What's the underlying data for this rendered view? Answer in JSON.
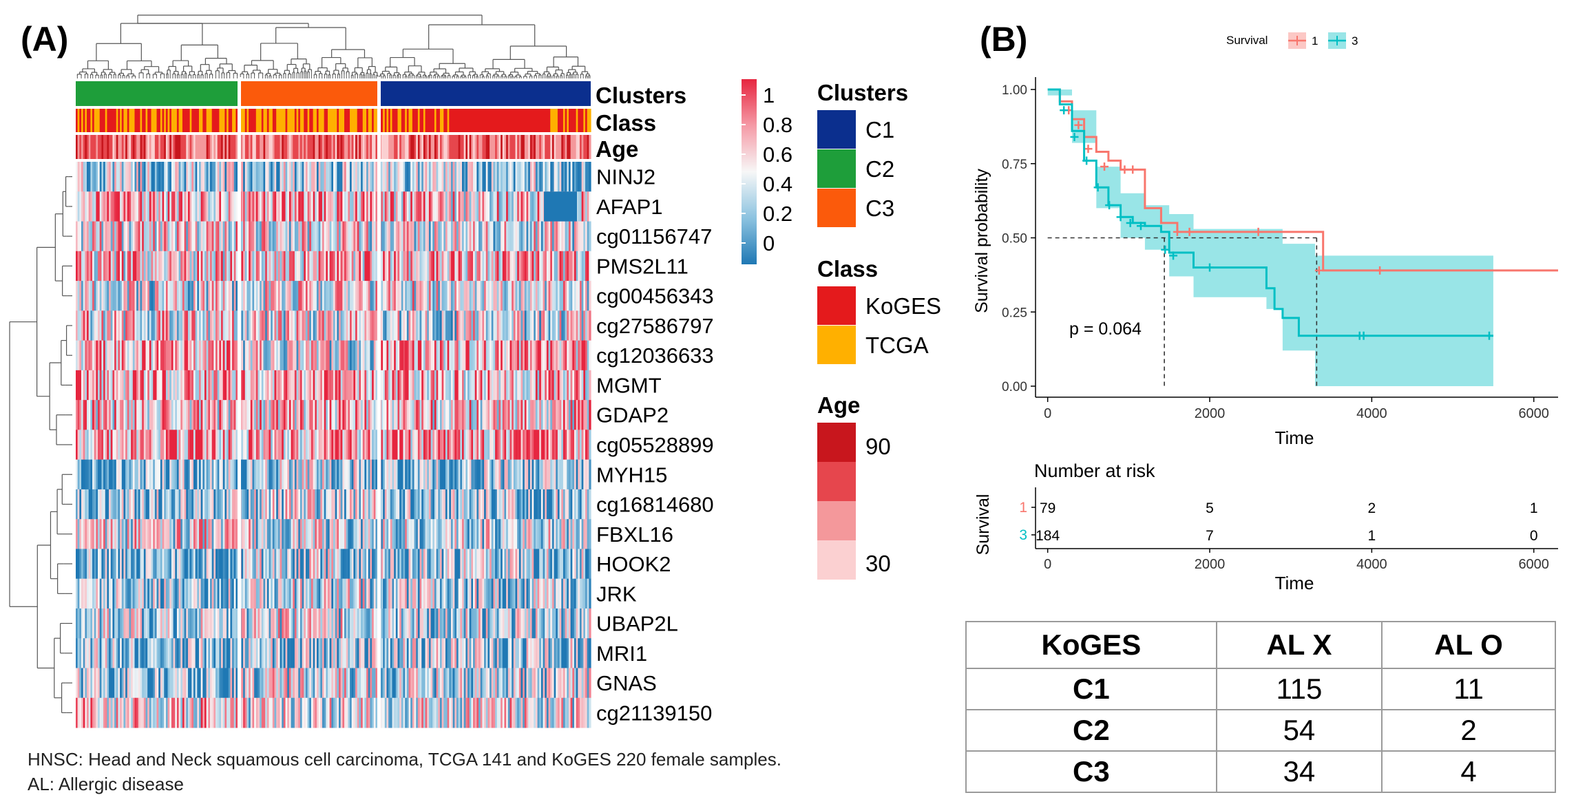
{
  "panels": {
    "a_label": "(A)",
    "b_label": "(B)"
  },
  "heatmap": {
    "annotation_labels": [
      "Clusters",
      "Class",
      "Age"
    ],
    "genes": [
      "NINJ2",
      "AFAP1",
      "cg01156747",
      "PMS2L11",
      "cg00456343",
      "cg27586797",
      "cg12036633",
      "MGMT",
      "GDAP2",
      "cg05528899",
      "MYH15",
      "cg16814680",
      "FBXL16",
      "HOOK2",
      "JRK",
      "UBAP2L",
      "MRI1",
      "GNAS",
      "cg21139150"
    ],
    "cluster_labels": [
      "C2",
      "C3",
      "C1"
    ],
    "colorbar": {
      "ticks": [
        "1",
        "0.8",
        "0.6",
        "0.4",
        "0.2",
        "0"
      ],
      "low_color": "#1f78b4",
      "mid_color": "#f7f7f7",
      "high_color": "#e6253f"
    },
    "legend_clusters": {
      "title": "Clusters",
      "items": [
        {
          "label": "C1",
          "color": "#0b2f8e"
        },
        {
          "label": "C2",
          "color": "#1e9e3a"
        },
        {
          "label": "C3",
          "color": "#fb5a0b"
        }
      ]
    },
    "legend_class": {
      "title": "Class",
      "items": [
        {
          "label": "KoGES",
          "color": "#e41a1c"
        },
        {
          "label": "TCGA",
          "color": "#ffb000"
        }
      ]
    },
    "legend_age": {
      "title": "Age",
      "max_label": "90",
      "min_label": "30",
      "colors": [
        "#c8161d",
        "#e6464d",
        "#f4989b",
        "#fbd0d1"
      ]
    }
  },
  "footnote": {
    "line1": "HNSC:  Head and Neck squamous cell carcinoma, TCGA  141 and KoGES  220 female samples.",
    "line2": "AL: Allergic disease"
  },
  "chart_data": [
    {
      "type": "heatmap",
      "title": "",
      "rows": [
        "NINJ2",
        "AFAP1",
        "cg01156747",
        "PMS2L11",
        "cg00456343",
        "cg27586797",
        "cg12036633",
        "MGMT",
        "GDAP2",
        "cg05528899",
        "MYH15",
        "cg16814680",
        "FBXL16",
        "HOOK2",
        "JRK",
        "UBAP2L",
        "MRI1",
        "GNAS",
        "cg21139150"
      ],
      "column_groups": [
        {
          "cluster": "C2",
          "n": 85
        },
        {
          "cluster": "C3",
          "n": 75
        },
        {
          "cluster": "C1",
          "n": 120
        }
      ],
      "value_range": [
        0,
        1
      ]
    },
    {
      "type": "line",
      "title": "",
      "legend_title": "Survival",
      "series": [
        {
          "name": "1",
          "color": "#f8766d",
          "x": [
            0,
            150,
            300,
            450,
            600,
            750,
            900,
            1050,
            1200,
            1400,
            1600,
            1800,
            2000,
            2600,
            3300,
            3400,
            6300
          ],
          "y": [
            1.0,
            0.96,
            0.9,
            0.84,
            0.79,
            0.76,
            0.73,
            0.73,
            0.6,
            0.55,
            0.52,
            0.52,
            0.52,
            0.52,
            0.52,
            0.39,
            0.39
          ],
          "censor_x": [
            260,
            380,
            500,
            700,
            950,
            1050,
            1600,
            1750,
            2600,
            3350,
            4100
          ],
          "censor_y": [
            0.93,
            0.88,
            0.8,
            0.74,
            0.73,
            0.73,
            0.52,
            0.52,
            0.52,
            0.39,
            0.39
          ]
        },
        {
          "name": "3",
          "color": "#00bfc4",
          "x": [
            0,
            150,
            300,
            450,
            600,
            750,
            900,
            1050,
            1200,
            1400,
            1500,
            1800,
            2000,
            2500,
            2700,
            2800,
            2900,
            3100,
            3800,
            5500
          ],
          "y": [
            1.0,
            0.95,
            0.86,
            0.76,
            0.67,
            0.61,
            0.57,
            0.55,
            0.54,
            0.52,
            0.45,
            0.4,
            0.4,
            0.4,
            0.33,
            0.26,
            0.23,
            0.17,
            0.17,
            0.17
          ],
          "censor_x": [
            200,
            330,
            480,
            620,
            760,
            900,
            1020,
            1150,
            1450,
            1550,
            2000,
            3850,
            3900,
            5450
          ],
          "censor_y": [
            0.93,
            0.84,
            0.76,
            0.67,
            0.61,
            0.57,
            0.55,
            0.54,
            0.46,
            0.44,
            0.4,
            0.17,
            0.17,
            0.17
          ]
        }
      ],
      "band_3": {
        "x": [
          0,
          300,
          600,
          900,
          1200,
          1500,
          1800,
          2700,
          2900,
          3300,
          5500
        ],
        "lower": [
          0.98,
          0.82,
          0.6,
          0.5,
          0.46,
          0.37,
          0.3,
          0.26,
          0.12,
          0.0,
          0.0
        ],
        "upper": [
          1.0,
          0.93,
          0.74,
          0.65,
          0.61,
          0.58,
          0.53,
          0.53,
          0.48,
          0.44,
          0.44
        ]
      },
      "median_lines": [
        {
          "x": 1440,
          "y": 0.5
        },
        {
          "x": 3320,
          "y": 0.5
        }
      ],
      "annotation": "p = 0.064",
      "xlabel": "Time",
      "ylabel": "Survival probability",
      "xlim": [
        -150,
        6300
      ],
      "ylim": [
        0,
        1
      ],
      "xticks": [
        "0",
        "2000",
        "4000",
        "6000"
      ],
      "yticks": [
        "0.00",
        "0.25",
        "0.50",
        "0.75",
        "1.00"
      ]
    },
    {
      "type": "table",
      "title": "Number at risk",
      "ylabel": "Survival",
      "xlabel": "Time",
      "time_points": [
        "0",
        "2000",
        "4000",
        "6000"
      ],
      "rows": [
        {
          "strata": "1",
          "color": "#f8766d",
          "values": [
            "79",
            "5",
            "2",
            "1"
          ]
        },
        {
          "strata": "3",
          "color": "#00bfc4",
          "values": [
            "184",
            "7",
            "1",
            "0"
          ]
        }
      ]
    }
  ],
  "table": {
    "headers": [
      "KoGES",
      "AL X",
      "AL O"
    ],
    "rows": [
      [
        "C1",
        "115",
        "11"
      ],
      [
        "C2",
        "54",
        "2"
      ],
      [
        "C3",
        "34",
        "4"
      ]
    ]
  }
}
